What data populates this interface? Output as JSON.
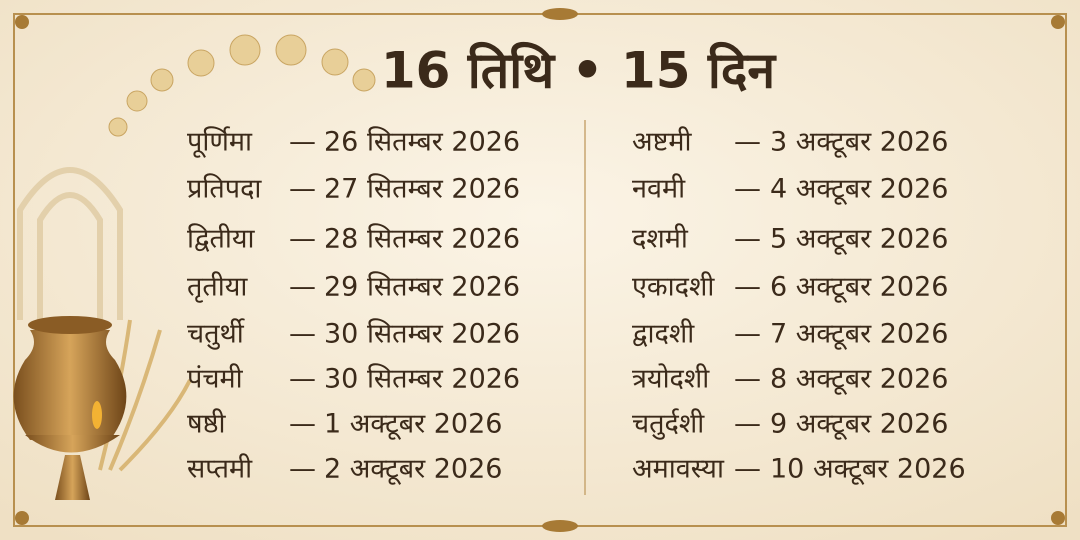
{
  "title": "16 तिथि • 15 दिन",
  "separator": "—",
  "left": [
    {
      "tithi": "पूर्णिमा",
      "date": "26 सितम्बर 2026"
    },
    {
      "tithi": "प्रतिपदा",
      "date": "27 सितम्बर 2026"
    },
    {
      "tithi": "द्वितीया",
      "date": "28 सितम्बर 2026"
    },
    {
      "tithi": "तृतीया",
      "date": "29 सितम्बर 2026"
    },
    {
      "tithi": "चतुर्थी",
      "date": "30 सितम्बर 2026"
    },
    {
      "tithi": "पंचमी",
      "date": "30 सितम्बर 2026"
    },
    {
      "tithi": "षष्ठी",
      "date": "1 अक्टूबर 2026"
    },
    {
      "tithi": "सप्तमी",
      "date": "2 अक्टूबर 2026"
    }
  ],
  "right": [
    {
      "tithi": "अष्टमी",
      "date": "3 अक्टूबर 2026"
    },
    {
      "tithi": "नवमी",
      "date": "4 अक्टूबर 2026"
    },
    {
      "tithi": "दशमी",
      "date": "5 अक्टूबर 2026"
    },
    {
      "tithi": "एकादशी",
      "date": "6 अक्टूबर 2026"
    },
    {
      "tithi": "द्वादशी",
      "date": "7 अक्टूबर 2026"
    },
    {
      "tithi": "त्रयोदशी",
      "date": "8 अक्टूबर 2026"
    },
    {
      "tithi": "चतुर्दशी",
      "date": "9 अक्टूबर 2026"
    },
    {
      "tithi": "अमावस्या",
      "date": "10 अक्टूबर 2026"
    }
  ]
}
